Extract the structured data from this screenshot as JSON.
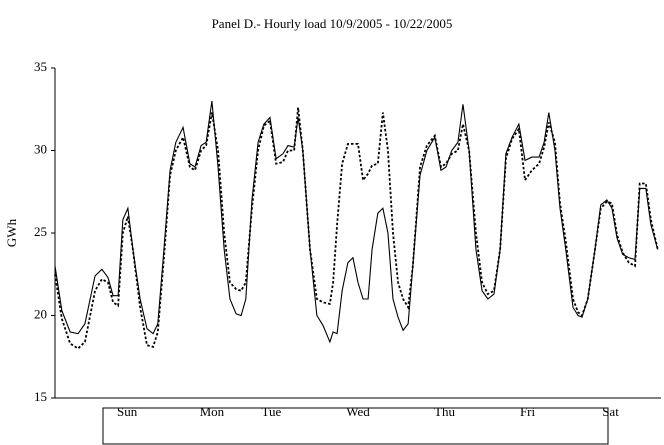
{
  "chart_data": {
    "type": "line",
    "title": "Panel D.- Hourly load 10/9/2005 - 10/22/2005",
    "y_label": "GWh",
    "x": [
      0,
      1.9,
      4.2,
      6.4,
      8.3,
      11.1,
      13.0,
      14.7,
      16.1,
      17.5,
      18.8,
      20.2,
      21.6,
      23.6,
      25.5,
      27.2,
      28.5,
      30.2,
      31.9,
      33.5,
      35.5,
      37.4,
      38.8,
      40.5,
      41.9,
      43.5,
      45.2,
      46.9,
      48.5,
      50.2,
      51.6,
      52.9,
      54.6,
      56.3,
      57.9,
      59.6,
      61.3,
      63.2,
      64.6,
      66.3,
      67.4,
      68.7,
      70.7,
      72.6,
      74.3,
      76.2,
      77.1,
      78.2,
      79.6,
      81.2,
      82.6,
      84.0,
      85.4,
      86.8,
      87.9,
      89.5,
      90.9,
      92.3,
      93.7,
      95.1,
      96.5,
      97.9,
      99.2,
      101.2,
      103.1,
      105.3,
      107.0,
      108.4,
      110.0,
      111.7,
      113.1,
      114.8,
      116.7,
      118.4,
      120.0,
      121.7,
      123.4,
      125.0,
      126.7,
      128.6,
      130.3,
      132.2,
      134.2,
      135.6,
      136.9,
      138.6,
      140.0,
      141.6,
      143.6,
      145.0,
      146.1,
      147.7,
      149.7,
      151.3,
      153.0,
      154.4,
      155.8,
      157.4,
      159.1,
      160.8,
      162.1,
      163.8,
      165.2,
      167.1
    ],
    "series": [
      {
        "color": "#000000",
        "style": "solid",
        "values": [
          23,
          20.3,
          19.0,
          18.9,
          19.5,
          22.4,
          22.8,
          22.3,
          21.2,
          21.2,
          25.8,
          26.5,
          24,
          21,
          19.2,
          18.9,
          19.5,
          24,
          28.8,
          30.5,
          31.4,
          29.2,
          29.0,
          30.3,
          30.5,
          33,
          29,
          24,
          21,
          20.1,
          20,
          21,
          27,
          30.5,
          31.6,
          32,
          29.5,
          29.8,
          30.3,
          30.2,
          32,
          30,
          24,
          20,
          19.4,
          18.4,
          19,
          18.9,
          21.5,
          23.2,
          23.5,
          22,
          21,
          21,
          24,
          26.2,
          26.5,
          25,
          21,
          19.9,
          19.1,
          19.5,
          23,
          28.5,
          30,
          30.8,
          28.8,
          29,
          30,
          30.5,
          32.8,
          30,
          24,
          21.5,
          21,
          21.3,
          24,
          29.8,
          30.8,
          31.6,
          29.4,
          29.6,
          29.6,
          30.5,
          32.3,
          30,
          26.5,
          24,
          20.5,
          20,
          19.9,
          21,
          24,
          26.7,
          27,
          26.5,
          24.7,
          23.7,
          23.5,
          23.4,
          27.7,
          27.7,
          25.5,
          24
        ]
      },
      {
        "color": "#000000",
        "style": "dotted",
        "values": [
          22.5,
          19.8,
          18.3,
          18.0,
          18.4,
          21.5,
          22.2,
          22.0,
          20.8,
          20.6,
          25.0,
          26.0,
          24,
          20.5,
          18.2,
          18.1,
          19.0,
          23.5,
          28.5,
          30.0,
          30.8,
          29.0,
          28.8,
          30.0,
          30.3,
          32.3,
          30,
          25,
          22,
          21.6,
          21.5,
          22,
          26.5,
          30,
          31.5,
          31.8,
          29.2,
          29.3,
          30,
          30,
          32.6,
          30,
          24,
          21,
          20.8,
          20.7,
          22,
          25.5,
          29.2,
          30.4,
          30.4,
          30.4,
          28.2,
          28.6,
          29.1,
          29.2,
          32.3,
          30,
          25,
          22,
          21,
          20.5,
          23,
          29,
          30.3,
          30.9,
          29,
          29.2,
          29.8,
          30,
          31.6,
          30,
          25,
          22,
          21.3,
          21.5,
          24,
          29.5,
          30.7,
          31.3,
          28.2,
          28.8,
          29.2,
          30.2,
          31.7,
          30.5,
          26.8,
          24.5,
          21,
          20.2,
          20,
          21,
          24,
          26.5,
          26.9,
          26.8,
          24.9,
          23.8,
          23.2,
          23.0,
          28,
          28,
          25.8,
          24
        ]
      }
    ],
    "xlim": [
      0,
      168
    ],
    "xticks": [
      {
        "value": 20,
        "label": "Sun"
      },
      {
        "value": 43.5,
        "label": "Mon"
      },
      {
        "value": 60,
        "label": "Tue"
      },
      {
        "value": 84,
        "label": "Wed"
      },
      {
        "value": 108,
        "label": "Thu"
      },
      {
        "value": 131,
        "label": "Fri"
      },
      {
        "value": 154,
        "label": "Sat"
      }
    ],
    "ylim": [
      15,
      35
    ],
    "yticks": [
      15,
      20,
      25,
      30,
      35
    ],
    "grid": false
  }
}
